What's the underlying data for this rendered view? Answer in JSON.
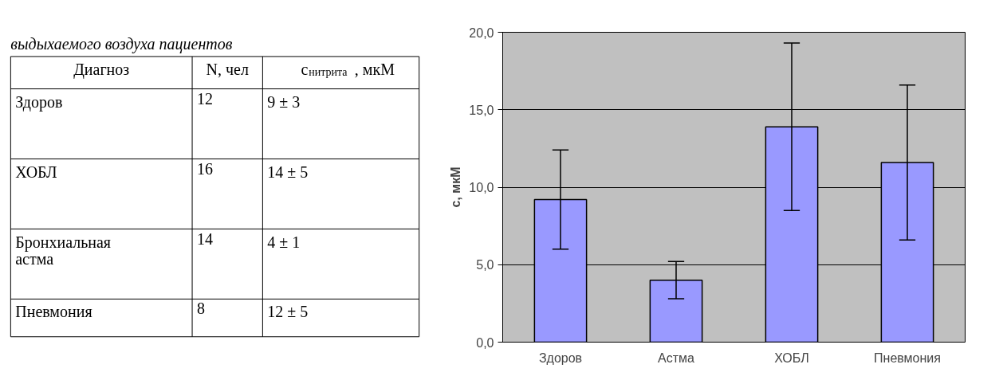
{
  "chart_data": [
    {
      "type": "other",
      "title": "выдыхаемого воздуха пациентов",
      "annotations": [
        "Диагноз",
        "N, чел",
        "c$_{нитрита}$, мкМ",
        "Здоров",
        "12",
        "9 ± 3",
        "ХОБЛ",
        "16",
        "14 ± 5",
        "Бронхиальная\nастма",
        "14",
        "4 ± 1",
        "Пневмония",
        "8",
        "12 ± 5"
      ]
    },
    {
      "type": "bar",
      "ylabel": "с, мкМ",
      "categories": [
        "Здоров",
        "Астма",
        "ХОБЛ",
        "Пневмония"
      ],
      "values": [
        9.2,
        4.0,
        13.9,
        11.6
      ],
      "errors": [
        3.2,
        1.2,
        5.4,
        5.0
      ],
      "color": "#9999ff",
      "ylim": [
        0,
        20
      ],
      "yticks": [
        {
          "value": 0,
          "label": "0,0"
        },
        {
          "value": 5,
          "label": "5,0"
        },
        {
          "value": 10,
          "label": "10,0"
        },
        {
          "value": 15,
          "label": "15,0"
        },
        {
          "value": 20,
          "label": "20,0"
        }
      ],
      "grid": "y"
    }
  ]
}
